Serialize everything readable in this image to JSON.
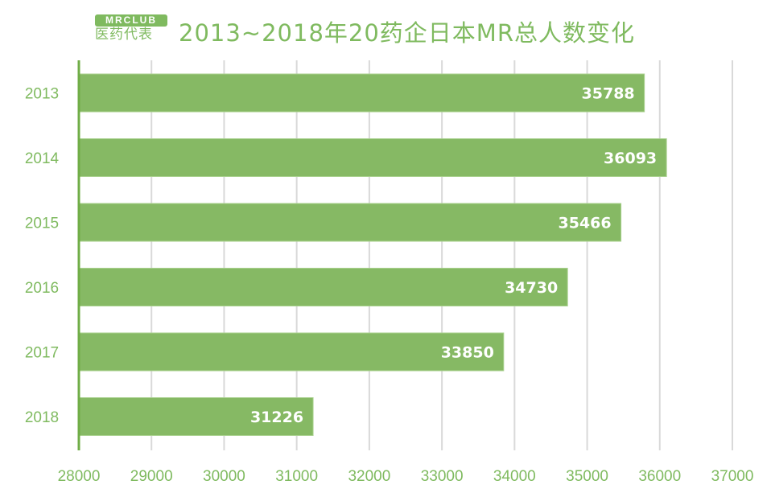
{
  "logo": {
    "top": "MRCLUB",
    "bottom": "医药代表"
  },
  "chart_data": {
    "type": "bar",
    "orientation": "horizontal",
    "title": "2013~2018年20药企日本MR总人数变化",
    "categories": [
      "2013",
      "2014",
      "2015",
      "2016",
      "2017",
      "2018"
    ],
    "values": [
      35788,
      36093,
      35466,
      34730,
      33850,
      31226
    ],
    "xlim": [
      28000,
      37000
    ],
    "xticks": [
      28000,
      29000,
      30000,
      31000,
      32000,
      33000,
      34000,
      35000,
      36000,
      37000
    ],
    "grid": true,
    "xlabel": "",
    "ylabel": "",
    "bar_color": "#86b964",
    "text_color": "#7fba5f"
  }
}
